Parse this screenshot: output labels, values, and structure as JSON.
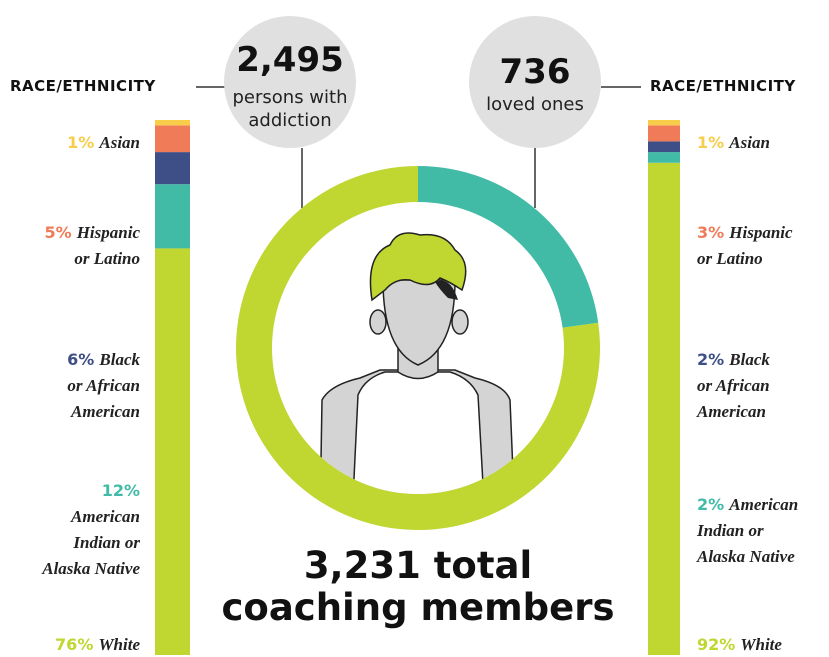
{
  "chart_data": [
    {
      "type": "pie",
      "donut": true,
      "title": "3,231 total\ncoaching members",
      "categories": [
        "persons with\naddiction",
        "loved ones"
      ],
      "values": [
        2495,
        736
      ],
      "value_labels": [
        "2,495",
        "736"
      ],
      "colors": [
        "#c0d631",
        "#41bba6"
      ]
    },
    {
      "type": "stacked-bar",
      "title": "RACE/ETHNICITY",
      "categories": [
        "White",
        "American\nIndian or\nAlaska Native",
        "Black\nor African\nAmerican",
        "Hispanic\nor Latino",
        "Asian"
      ],
      "values": [
        76,
        12,
        6,
        5,
        1
      ],
      "value_labels": [
        "76%",
        "12%",
        "6%",
        "5%",
        "1%"
      ],
      "colors": [
        "#c0d631",
        "#41bba6",
        "#3d4f86",
        "#f07b58",
        "#f7cd4a"
      ]
    },
    {
      "type": "stacked-bar",
      "title": "RACE/ETHNICITY",
      "categories": [
        "White",
        "American\nIndian or\nAlaska Native",
        "Black\nor African\nAmerican",
        "Hispanic\nor Latino",
        "Asian"
      ],
      "values": [
        92,
        2,
        2,
        3,
        1
      ],
      "value_labels": [
        "92%",
        "2%",
        "2%",
        "3%",
        "1%"
      ],
      "colors": [
        "#c0d631",
        "#41bba6",
        "#3d4f86",
        "#f07b58",
        "#f7cd4a"
      ]
    }
  ]
}
